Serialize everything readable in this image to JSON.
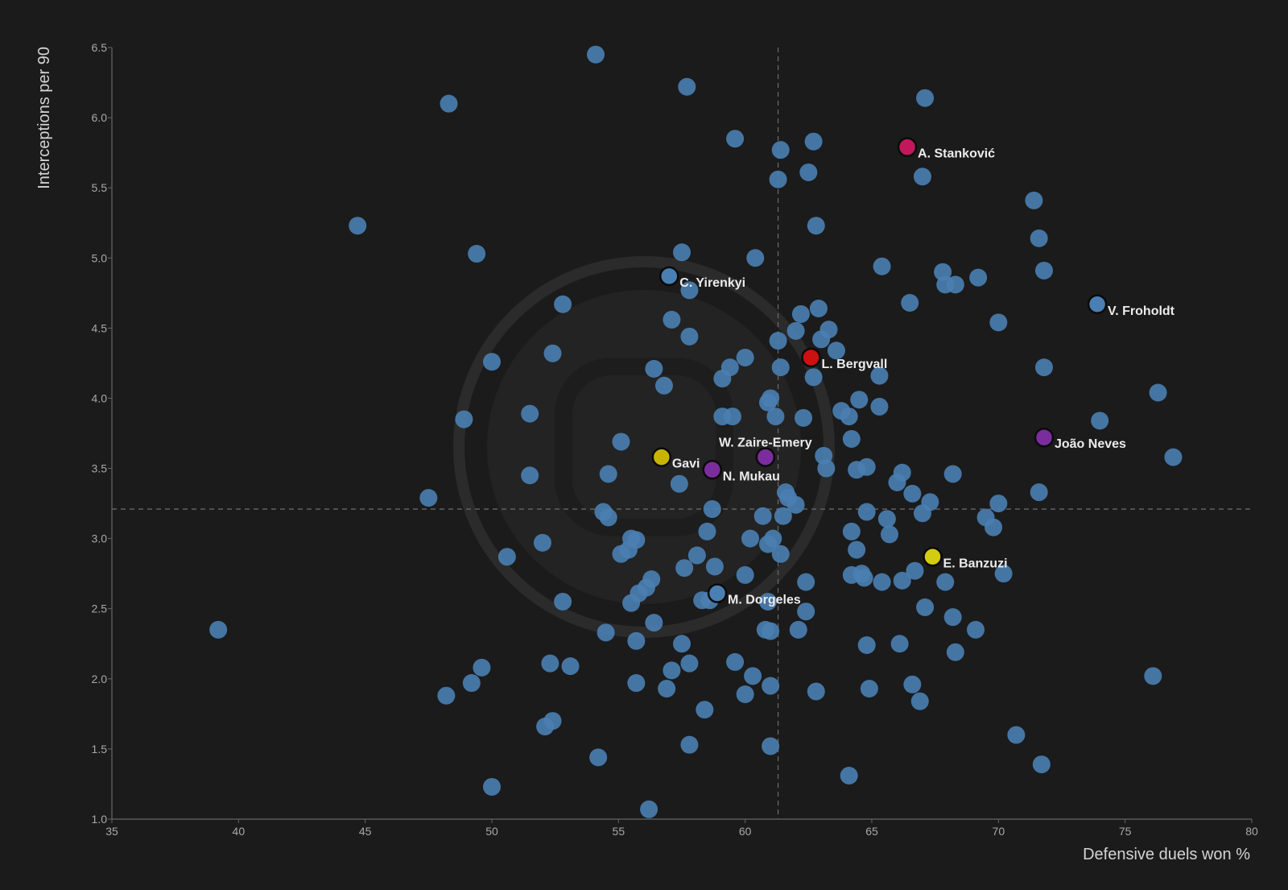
{
  "chart_data": {
    "type": "scatter",
    "xlabel": "Defensive duels won %",
    "ylabel": "Interceptions per 90",
    "xlim": [
      35,
      80
    ],
    "ylim": [
      1.0,
      6.5
    ],
    "xticks": [
      "35",
      "40",
      "45",
      "50",
      "55",
      "60",
      "65",
      "70",
      "75",
      "80"
    ],
    "yticks": [
      "1.0",
      "1.5",
      "2.0",
      "2.5",
      "3.0",
      "3.5",
      "4.0",
      "4.5",
      "5.0",
      "5.5",
      "6.0",
      "6.5"
    ],
    "reference_lines": {
      "x": 61.3,
      "y": 3.21
    },
    "grid": false,
    "colors": {
      "background": "#1b1b1b",
      "default_point": "#4a7fb3",
      "axis": "#666666",
      "reference_line": "#666666"
    },
    "highlighted": [
      {
        "label": "A. Stanković",
        "x": 66.4,
        "y": 5.79,
        "color": "#c2185b"
      },
      {
        "label": "C. Yirenkyi",
        "x": 57.0,
        "y": 4.87,
        "color": "#4a7fb3"
      },
      {
        "label": "V. Froholdt",
        "x": 73.9,
        "y": 4.67,
        "color": "#4a7fb3"
      },
      {
        "label": "L. Bergvall",
        "x": 62.6,
        "y": 4.29,
        "color": "#cc1111"
      },
      {
        "label": "João Neves",
        "x": 71.8,
        "y": 3.72,
        "color": "#7b2d9e"
      },
      {
        "label": "W. Zaire-Emery",
        "x": 60.8,
        "y": 3.58,
        "color": "#7b2d9e"
      },
      {
        "label": "Gavi",
        "x": 56.7,
        "y": 3.58,
        "color": "#c8b400"
      },
      {
        "label": "N. Mukau",
        "x": 58.7,
        "y": 3.49,
        "color": "#7b2d9e"
      },
      {
        "label": "E. Banzuzi",
        "x": 67.4,
        "y": 2.87,
        "color": "#d4cc10"
      },
      {
        "label": "M. Dorgeles",
        "x": 58.9,
        "y": 2.61,
        "color": "#4a7fb3"
      }
    ],
    "points": [
      [
        54.1,
        6.45
      ],
      [
        57.7,
        6.22
      ],
      [
        48.3,
        6.1
      ],
      [
        67.1,
        6.14
      ],
      [
        59.6,
        5.85
      ],
      [
        62.7,
        5.83
      ],
      [
        61.4,
        5.77
      ],
      [
        62.5,
        5.61
      ],
      [
        61.3,
        5.56
      ],
      [
        67.0,
        5.58
      ],
      [
        71.4,
        5.41
      ],
      [
        44.7,
        5.23
      ],
      [
        62.8,
        5.23
      ],
      [
        71.6,
        5.14
      ],
      [
        57.5,
        5.04
      ],
      [
        49.4,
        5.03
      ],
      [
        60.4,
        5.0
      ],
      [
        65.4,
        4.94
      ],
      [
        71.8,
        4.91
      ],
      [
        67.8,
        4.9
      ],
      [
        69.2,
        4.86
      ],
      [
        67.9,
        4.81
      ],
      [
        68.3,
        4.81
      ],
      [
        57.8,
        4.77
      ],
      [
        52.8,
        4.67
      ],
      [
        62.9,
        4.64
      ],
      [
        66.5,
        4.68
      ],
      [
        62.2,
        4.6
      ],
      [
        57.1,
        4.56
      ],
      [
        70.0,
        4.54
      ],
      [
        63.3,
        4.49
      ],
      [
        62.0,
        4.48
      ],
      [
        63.0,
        4.42
      ],
      [
        57.8,
        4.44
      ],
      [
        61.3,
        4.41
      ],
      [
        63.6,
        4.34
      ],
      [
        52.4,
        4.32
      ],
      [
        60.0,
        4.29
      ],
      [
        50.0,
        4.26
      ],
      [
        59.4,
        4.22
      ],
      [
        56.4,
        4.21
      ],
      [
        61.4,
        4.22
      ],
      [
        71.8,
        4.22
      ],
      [
        62.7,
        4.15
      ],
      [
        59.1,
        4.14
      ],
      [
        65.3,
        4.16
      ],
      [
        56.8,
        4.09
      ],
      [
        76.3,
        4.04
      ],
      [
        60.9,
        3.97
      ],
      [
        61.0,
        4.0
      ],
      [
        64.5,
        3.99
      ],
      [
        65.3,
        3.94
      ],
      [
        63.8,
        3.91
      ],
      [
        51.5,
        3.89
      ],
      [
        64.1,
        3.87
      ],
      [
        59.1,
        3.87
      ],
      [
        59.5,
        3.87
      ],
      [
        61.2,
        3.87
      ],
      [
        62.3,
        3.86
      ],
      [
        48.9,
        3.85
      ],
      [
        74.0,
        3.84
      ],
      [
        55.1,
        3.69
      ],
      [
        64.2,
        3.71
      ],
      [
        63.1,
        3.59
      ],
      [
        76.9,
        3.58
      ],
      [
        63.2,
        3.5
      ],
      [
        64.4,
        3.49
      ],
      [
        64.8,
        3.51
      ],
      [
        54.6,
        3.46
      ],
      [
        51.5,
        3.45
      ],
      [
        66.2,
        3.47
      ],
      [
        68.2,
        3.46
      ],
      [
        57.4,
        3.39
      ],
      [
        66.0,
        3.4
      ],
      [
        66.6,
        3.32
      ],
      [
        71.6,
        3.33
      ],
      [
        47.5,
        3.29
      ],
      [
        61.6,
        3.33
      ],
      [
        61.7,
        3.29
      ],
      [
        67.3,
        3.26
      ],
      [
        62.0,
        3.24
      ],
      [
        70.0,
        3.25
      ],
      [
        58.7,
        3.21
      ],
      [
        54.4,
        3.19
      ],
      [
        64.8,
        3.19
      ],
      [
        67.0,
        3.18
      ],
      [
        54.6,
        3.15
      ],
      [
        61.5,
        3.16
      ],
      [
        60.7,
        3.16
      ],
      [
        65.6,
        3.14
      ],
      [
        69.5,
        3.15
      ],
      [
        69.8,
        3.08
      ],
      [
        64.2,
        3.05
      ],
      [
        65.7,
        3.03
      ],
      [
        58.5,
        3.05
      ],
      [
        55.5,
        3.0
      ],
      [
        55.7,
        2.99
      ],
      [
        60.2,
        3.0
      ],
      [
        61.1,
        3.0
      ],
      [
        60.9,
        2.96
      ],
      [
        52.0,
        2.97
      ],
      [
        55.4,
        2.92
      ],
      [
        64.4,
        2.92
      ],
      [
        55.1,
        2.89
      ],
      [
        58.1,
        2.88
      ],
      [
        61.4,
        2.89
      ],
      [
        50.6,
        2.87
      ],
      [
        57.6,
        2.79
      ],
      [
        58.8,
        2.8
      ],
      [
        70.2,
        2.75
      ],
      [
        66.7,
        2.77
      ],
      [
        60.0,
        2.74
      ],
      [
        64.2,
        2.74
      ],
      [
        64.6,
        2.75
      ],
      [
        64.7,
        2.72
      ],
      [
        65.4,
        2.69
      ],
      [
        66.2,
        2.7
      ],
      [
        62.4,
        2.69
      ],
      [
        67.9,
        2.69
      ],
      [
        56.3,
        2.71
      ],
      [
        56.1,
        2.65
      ],
      [
        55.8,
        2.61
      ],
      [
        58.6,
        2.56
      ],
      [
        58.3,
        2.56
      ],
      [
        52.8,
        2.55
      ],
      [
        55.5,
        2.54
      ],
      [
        60.9,
        2.55
      ],
      [
        67.1,
        2.51
      ],
      [
        62.4,
        2.48
      ],
      [
        68.2,
        2.44
      ],
      [
        56.4,
        2.4
      ],
      [
        39.2,
        2.35
      ],
      [
        54.5,
        2.33
      ],
      [
        61.0,
        2.34
      ],
      [
        60.8,
        2.35
      ],
      [
        62.1,
        2.35
      ],
      [
        69.1,
        2.35
      ],
      [
        55.7,
        2.27
      ],
      [
        57.5,
        2.25
      ],
      [
        64.8,
        2.24
      ],
      [
        66.1,
        2.25
      ],
      [
        68.3,
        2.19
      ],
      [
        49.6,
        2.08
      ],
      [
        52.3,
        2.11
      ],
      [
        53.1,
        2.09
      ],
      [
        57.8,
        2.11
      ],
      [
        59.6,
        2.12
      ],
      [
        57.1,
        2.06
      ],
      [
        60.3,
        2.02
      ],
      [
        76.1,
        2.02
      ],
      [
        49.2,
        1.97
      ],
      [
        55.7,
        1.97
      ],
      [
        61.0,
        1.95
      ],
      [
        66.6,
        1.96
      ],
      [
        56.9,
        1.93
      ],
      [
        64.9,
        1.93
      ],
      [
        62.8,
        1.91
      ],
      [
        60.0,
        1.89
      ],
      [
        48.2,
        1.88
      ],
      [
        66.9,
        1.84
      ],
      [
        58.4,
        1.78
      ],
      [
        52.4,
        1.7
      ],
      [
        52.1,
        1.66
      ],
      [
        70.7,
        1.6
      ],
      [
        57.8,
        1.53
      ],
      [
        61.0,
        1.52
      ],
      [
        54.2,
        1.44
      ],
      [
        71.7,
        1.39
      ],
      [
        64.1,
        1.31
      ],
      [
        50.0,
        1.23
      ],
      [
        56.2,
        1.07
      ]
    ]
  }
}
